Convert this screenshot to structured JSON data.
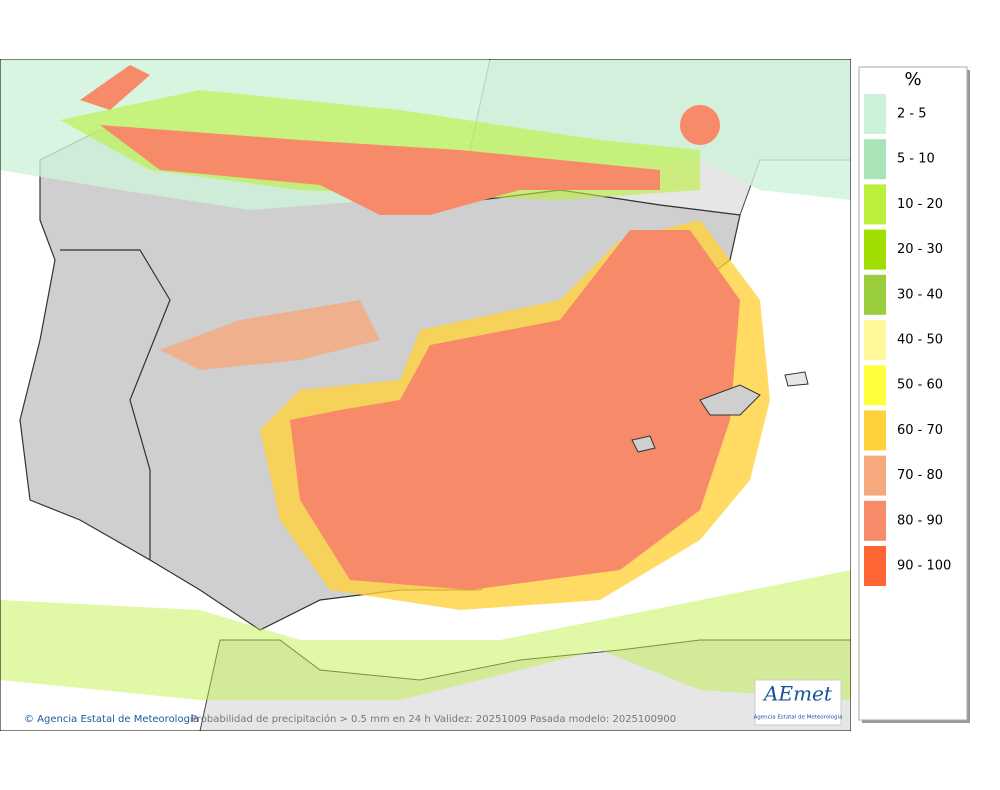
{
  "legend": {
    "title": "%",
    "items": [
      {
        "label": "2 - 5",
        "color": "#cdf2d9"
      },
      {
        "label": "5 - 10",
        "color": "#a9e4b9"
      },
      {
        "label": "10 - 20",
        "color": "#bdf03c"
      },
      {
        "label": "20 - 30",
        "color": "#9fde00"
      },
      {
        "label": "30 - 40",
        "color": "#9acd3c"
      },
      {
        "label": "40 - 50",
        "color": "#fff99c"
      },
      {
        "label": "50 - 60",
        "color": "#ffff3c"
      },
      {
        "label": "60 - 70",
        "color": "#ffd23c"
      },
      {
        "label": "70 - 80",
        "color": "#f6a97c"
      },
      {
        "label": "80 - 90",
        "color": "#f78a69"
      },
      {
        "label": "90 - 100",
        "color": "#ff6434"
      }
    ]
  },
  "footer": {
    "credit": "© Agencia Estatal de Meteorología",
    "caption": "Probabilidad de precipitación > 0.5 mm en 24 h Validez: 20251009 Pasada modelo: 2025100900"
  },
  "logo": {
    "name": "AEmet",
    "subtitle": "Agencia Estatal de Meteorología"
  }
}
